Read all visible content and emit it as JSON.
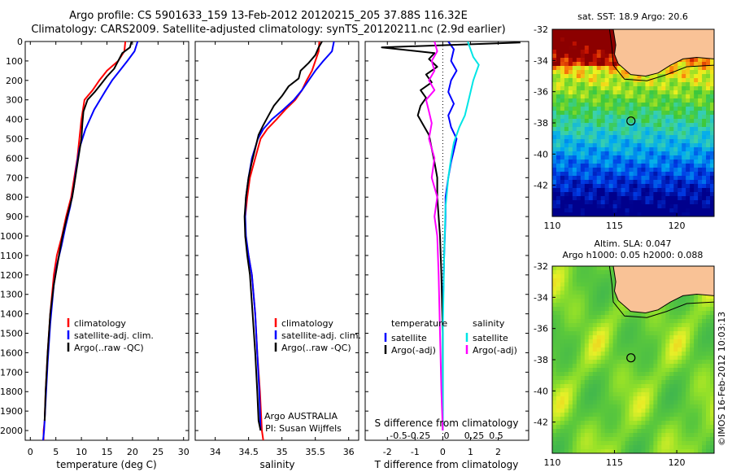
{
  "title_line1": "Argo profile: CS 5901633_159 13-Feb-2012 20120215_205 37.88S 116.32E",
  "title_line2": "Climatology: CARS2009. Satellite-adjusted climatology: synTS_20120211.nc (2.9d earlier)",
  "credit": "©IMOS 16-Feb-2012 10:03:13",
  "colors": {
    "red": "#ff0000",
    "blue": "#0000ff",
    "black": "#000000",
    "cyan": "#00e5e5",
    "magenta": "#ff00ff",
    "land": "#f9c296"
  },
  "chart_data": [
    {
      "type": "line",
      "id": "temperature-profile",
      "xlabel": "temperature (deg C)",
      "ylim": [
        2050,
        0
      ],
      "xlim": [
        -1,
        31
      ],
      "xticks": [
        0,
        5,
        10,
        15,
        20,
        25,
        30
      ],
      "yticks": [
        0,
        100,
        200,
        300,
        400,
        500,
        600,
        700,
        800,
        900,
        1000,
        1100,
        1200,
        1300,
        1400,
        1500,
        1600,
        1700,
        1800,
        1900,
        2000
      ],
      "legend": [
        "climatology",
        "satellite-adj. clim.",
        "Argo(..raw -QC)"
      ],
      "series": [
        {
          "name": "climatology",
          "color": "red",
          "x": [
            18.6,
            18.4,
            17.2,
            15.0,
            13.5,
            12.2,
            10.6,
            10.0,
            9.6,
            9.2,
            8.6,
            8.0,
            7.0,
            6.2,
            5.2,
            4.6,
            3.9,
            3.4,
            3.0,
            2.8,
            2.6,
            2.6
          ],
          "y": [
            0,
            50,
            100,
            150,
            200,
            250,
            300,
            400,
            500,
            600,
            700,
            800,
            900,
            1000,
            1100,
            1200,
            1400,
            1600,
            1800,
            1950,
            2000,
            2050
          ]
        },
        {
          "name": "satellite-adj. clim.",
          "color": "blue",
          "x": [
            21.0,
            20.4,
            19.0,
            17.5,
            16.0,
            14.8,
            12.5,
            10.8,
            9.6,
            9.0,
            8.5,
            7.8,
            6.9,
            6.1,
            5.2,
            4.6,
            3.9,
            3.4,
            3.0,
            2.7,
            2.5
          ],
          "y": [
            0,
            50,
            100,
            150,
            200,
            250,
            350,
            450,
            550,
            650,
            750,
            850,
            950,
            1050,
            1150,
            1250,
            1450,
            1650,
            1850,
            2000,
            2050
          ]
        },
        {
          "name": "Argo(..raw -QC)",
          "color": "black",
          "x": [
            19.8,
            19.5,
            18.0,
            17.2,
            16.4,
            15.0,
            13.8,
            12.6,
            11.2,
            10.4,
            10.2,
            10.0,
            9.4,
            8.8,
            8.2,
            7.2,
            6.3,
            5.6,
            4.6,
            3.9,
            3.4,
            3.0,
            2.8
          ],
          "y": [
            0,
            30,
            60,
            100,
            140,
            180,
            220,
            260,
            300,
            360,
            420,
            500,
            600,
            700,
            800,
            900,
            1000,
            1100,
            1250,
            1400,
            1600,
            1800,
            1950
          ]
        }
      ]
    },
    {
      "type": "line",
      "id": "salinity-profile",
      "xlabel": "salinity",
      "ylim": [
        2050,
        0
      ],
      "xlim": [
        33.7,
        36.15
      ],
      "xticks": [
        34,
        34.5,
        35,
        35.5,
        36
      ],
      "xticklabels": [
        "34",
        "34.5",
        "35",
        "35.5",
        "36"
      ],
      "legend": [
        "climatology",
        "satellite-adj. clim.",
        "Argo(..raw -QC)"
      ],
      "annotation": [
        "Argo AUSTRALIA",
        "PI: Susan Wijffels"
      ],
      "series": [
        {
          "name": "climatology",
          "color": "red",
          "x": [
            35.56,
            35.55,
            35.5,
            35.45,
            35.37,
            35.3,
            35.2,
            35.05,
            34.92,
            34.78,
            34.68,
            34.6,
            34.52,
            34.48,
            34.45,
            34.45,
            34.5,
            34.55,
            34.6,
            34.63,
            34.67,
            34.7,
            34.72
          ],
          "y": [
            0,
            50,
            100,
            150,
            200,
            250,
            300,
            350,
            400,
            450,
            500,
            600,
            700,
            800,
            900,
            1000,
            1100,
            1200,
            1400,
            1600,
            1800,
            2000,
            2050
          ]
        },
        {
          "name": "satellite-adj. clim.",
          "color": "blue",
          "x": [
            35.78,
            35.75,
            35.62,
            35.5,
            35.4,
            35.3,
            35.18,
            35.02,
            34.85,
            34.72,
            34.64,
            34.55,
            34.5,
            34.46,
            34.45,
            34.46,
            34.5,
            34.55,
            34.6,
            34.63,
            34.66,
            34.68
          ],
          "y": [
            0,
            50,
            100,
            150,
            200,
            250,
            300,
            350,
            400,
            450,
            500,
            600,
            700,
            800,
            900,
            1000,
            1100,
            1200,
            1400,
            1600,
            1800,
            2000
          ]
        },
        {
          "name": "Argo(..raw -QC)",
          "color": "black",
          "x": [
            35.6,
            35.55,
            35.5,
            35.4,
            35.28,
            35.25,
            35.1,
            35.0,
            34.88,
            34.8,
            34.72,
            34.65,
            34.6,
            34.55,
            34.5,
            34.46,
            34.44,
            34.45,
            34.48,
            34.52,
            34.56,
            34.6,
            34.63,
            34.65,
            34.68
          ],
          "y": [
            0,
            30,
            70,
            110,
            150,
            190,
            230,
            280,
            330,
            380,
            430,
            480,
            550,
            620,
            700,
            800,
            900,
            1000,
            1100,
            1200,
            1400,
            1600,
            1800,
            1950,
            2000
          ]
        }
      ]
    },
    {
      "type": "line",
      "id": "difference-profile",
      "xlabel": "T difference from climatology",
      "top_xlabel": "S difference from climatology",
      "ylim": [
        2050,
        0
      ],
      "xlim": [
        -2.8,
        3.1
      ],
      "xticks": [
        -2,
        -1,
        0,
        1,
        2
      ],
      "top_ticks": [
        -0.5,
        -0.25,
        0,
        0.25,
        0.5
      ],
      "legend_titles": [
        "temperature",
        "salinity"
      ],
      "legend": [
        "satellite",
        "Argo(-adj)",
        "satellite",
        "Argo(-adj)"
      ],
      "series": [
        {
          "name": "T satellite",
          "color": "blue",
          "x": [
            0.2,
            0.4,
            0.3,
            0.5,
            0.3,
            0.2,
            0.4,
            0.2,
            0.3,
            0.5,
            0.4,
            0.3,
            0.2,
            0.1,
            0.1,
            0.05,
            0.0,
            0.0,
            0.0
          ],
          "y": [
            0,
            40,
            100,
            150,
            200,
            260,
            320,
            380,
            440,
            500,
            560,
            620,
            700,
            800,
            900,
            1100,
            1400,
            1700,
            2000
          ]
        },
        {
          "name": "T Argo(-adj)",
          "color": "black",
          "x": [
            2.8,
            -2.2,
            -0.3,
            -0.5,
            -0.2,
            -0.6,
            -0.4,
            -0.8,
            -0.6,
            -0.8,
            -0.9,
            -0.7,
            -0.5,
            -0.4,
            -0.3,
            -0.2,
            -0.2,
            -0.1,
            -0.05,
            0.0,
            0.0
          ],
          "y": [
            5,
            30,
            60,
            90,
            130,
            170,
            210,
            250,
            290,
            330,
            380,
            430,
            480,
            550,
            620,
            700,
            800,
            1000,
            1200,
            1500,
            1900
          ]
        },
        {
          "name": "S satellite",
          "color": "cyan",
          "x": [
            0.9,
            1.0,
            1.1,
            1.3,
            1.2,
            1.1,
            1.0,
            0.9,
            0.8,
            0.6,
            0.4,
            0.3,
            0.2,
            0.1,
            0.05,
            0.0,
            0.0
          ],
          "y": [
            0,
            40,
            80,
            120,
            160,
            200,
            260,
            320,
            380,
            440,
            520,
            600,
            700,
            850,
            1100,
            1500,
            2000
          ]
        },
        {
          "name": "S Argo(-adj)",
          "color": "magenta",
          "x": [
            -0.3,
            -0.2,
            -0.4,
            -0.3,
            -0.5,
            -0.3,
            -0.6,
            -0.5,
            -0.4,
            -0.5,
            -0.3,
            -0.4,
            -0.2,
            -0.3,
            -0.2,
            -0.15,
            -0.1,
            -0.05,
            0.0
          ],
          "y": [
            0,
            50,
            100,
            150,
            200,
            250,
            300,
            360,
            420,
            500,
            600,
            700,
            800,
            900,
            1000,
            1200,
            1500,
            1800,
            2000
          ]
        }
      ]
    },
    {
      "type": "heatmap",
      "id": "sst-map",
      "title": "sat. SST: 18.9 Argo: 20.6",
      "xlim": [
        110,
        123
      ],
      "ylim": [
        -44,
        -32
      ],
      "xticks": [
        110,
        115,
        120
      ],
      "yticks": [
        -32,
        -34,
        -36,
        -38,
        -40,
        -42
      ],
      "marker": {
        "lon": 116.32,
        "lat": -37.88
      }
    },
    {
      "type": "heatmap",
      "id": "sla-map",
      "title_line1": "Altim. SLA: 0.047",
      "title_line2": "Argo h1000: 0.05 h2000: 0.088",
      "xlim": [
        110,
        123
      ],
      "ylim": [
        -44,
        -32
      ],
      "xticks": [
        110,
        115,
        120
      ],
      "yticks": [
        -32,
        -34,
        -36,
        -38,
        -40,
        -42
      ],
      "marker": {
        "lon": 116.32,
        "lat": -37.88
      }
    }
  ]
}
